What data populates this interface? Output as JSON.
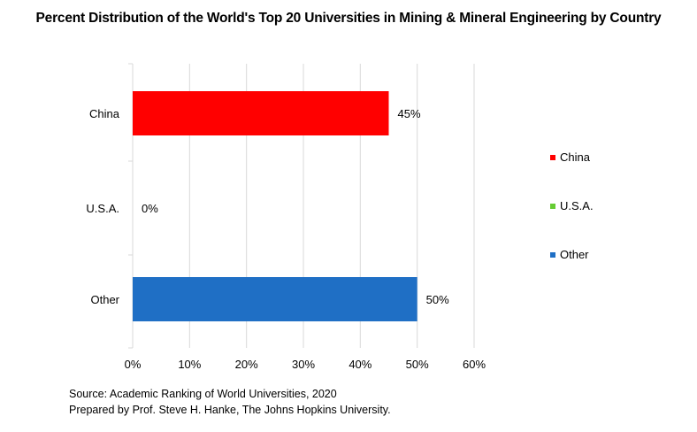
{
  "chart_data": {
    "type": "bar",
    "orientation": "horizontal",
    "title": "Percent Distribution of the World's Top 20 Universities in Mining & Mineral Engineering by Country",
    "categories": [
      "China",
      "U.S.A.",
      "Other"
    ],
    "values": [
      45,
      0,
      50
    ],
    "data_labels": [
      "45%",
      "0%",
      "50%"
    ],
    "colors": [
      "#ff0000",
      "#66cc33",
      "#1f6fc5"
    ],
    "xlim": [
      0,
      60
    ],
    "x_ticks": [
      0,
      10,
      20,
      30,
      40,
      50,
      60
    ],
    "x_tick_labels": [
      "0%",
      "10%",
      "20%",
      "30%",
      "40%",
      "50%",
      "60%"
    ],
    "grid": true,
    "legend_position": "right",
    "legend": [
      {
        "label": "China",
        "color": "#ff0000"
      },
      {
        "label": "U.S.A.",
        "color": "#66cc33"
      },
      {
        "label": "Other",
        "color": "#1f6fc5"
      }
    ]
  },
  "source": {
    "line1": "Source: Academic Ranking of World Universities, 2020",
    "line2": "Prepared by Prof. Steve H. Hanke, The Johns Hopkins University."
  }
}
